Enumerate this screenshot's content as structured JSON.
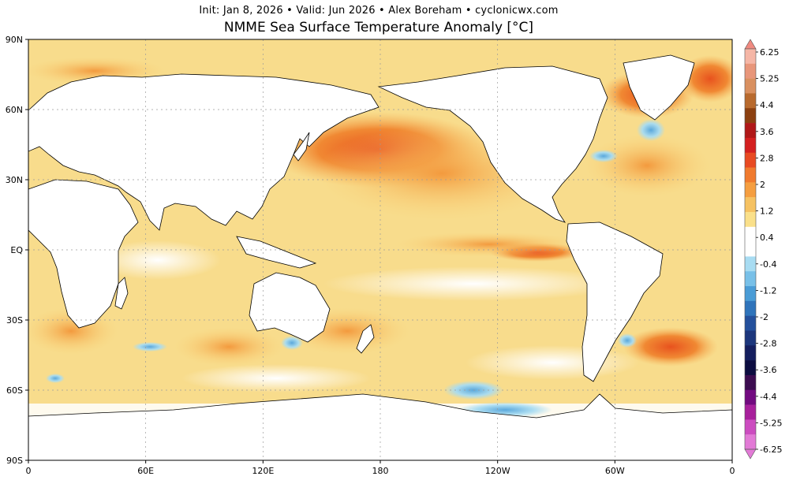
{
  "header": {
    "info_line": "Init: Jan 8, 2026 • Valid: Jun 2026 • Alex Boreham • cyclonicwx.com",
    "title": "NMME Sea Surface Temperature Anomaly [°C]"
  },
  "map": {
    "projection": "equirectangular",
    "central_longitude": 180,
    "lat_ticks": [
      {
        "label": "90N",
        "lat": 90
      },
      {
        "label": "60N",
        "lat": 60
      },
      {
        "label": "30N",
        "lat": 30
      },
      {
        "label": "EQ",
        "lat": 0
      },
      {
        "label": "30S",
        "lat": -30
      },
      {
        "label": "60S",
        "lat": -60
      },
      {
        "label": "90S",
        "lat": -90
      }
    ],
    "lon_ticks": [
      {
        "label": "0",
        "lon": 0
      },
      {
        "label": "60E",
        "lon": 60
      },
      {
        "label": "120E",
        "lon": 120
      },
      {
        "label": "180",
        "lon": 180
      },
      {
        "label": "120W",
        "lon": 240
      },
      {
        "label": "60W",
        "lon": 300
      },
      {
        "label": "0",
        "lon": 360
      }
    ],
    "land_color": "#ffffff",
    "gridlines": true
  },
  "colorbar": {
    "labels": [
      "6.25",
      "5.25",
      "4.4",
      "3.6",
      "2.8",
      "2",
      "1.2",
      "0.4",
      "-0.4",
      "-1.2",
      "-2",
      "-2.8",
      "-3.6",
      "-4.4",
      "-5.25",
      "-6.25"
    ],
    "colors": [
      "#f5b6a6",
      "#e8967a",
      "#d99060",
      "#b86a2e",
      "#8c4010",
      "#b01818",
      "#d42020",
      "#e84a22",
      "#f07a2e",
      "#f59e40",
      "#f6c262",
      "#fae08a",
      "#ffffff",
      "#ffffff",
      "#a8dcf2",
      "#78c0e8",
      "#4a9cd6",
      "#2f74bb",
      "#24509c",
      "#1c367c",
      "#141e5e",
      "#0c0c40",
      "#3c0c50",
      "#720a80",
      "#a8209c",
      "#cc4cc0",
      "#e27ad6"
    ],
    "extend": "both"
  }
}
